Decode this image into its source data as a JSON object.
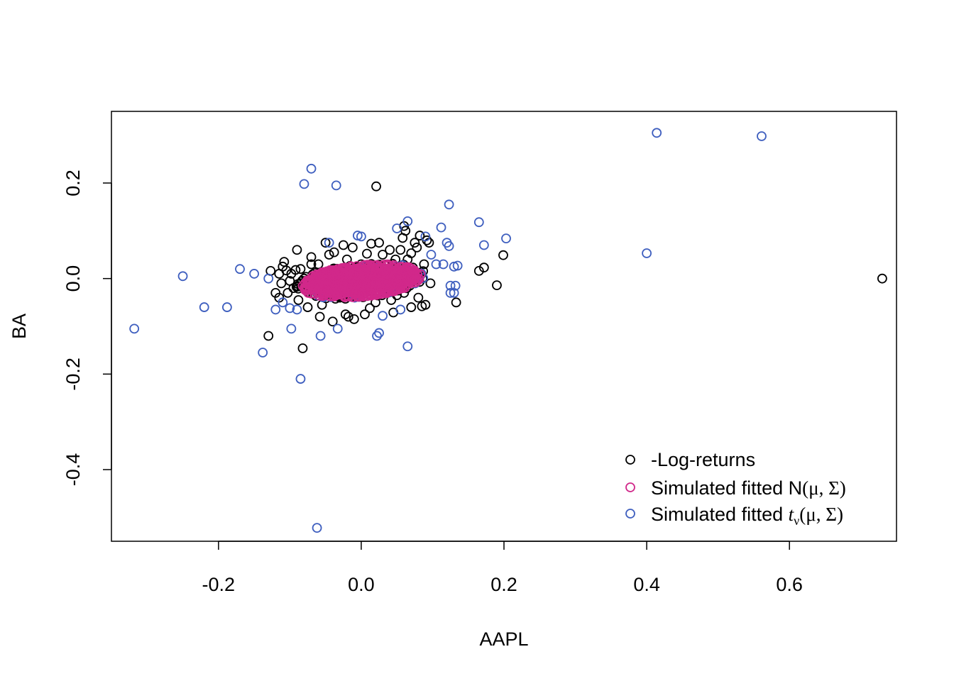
{
  "chart_data": {
    "type": "scatter",
    "title": "",
    "xlabel": "AAPL",
    "ylabel": "BA",
    "xlim": [
      -0.35,
      0.75
    ],
    "ylim": [
      -0.55,
      0.35
    ],
    "xticks": [
      -0.2,
      0.0,
      0.2,
      0.4,
      0.6
    ],
    "xtick_labels": [
      "-0.2",
      "0.0",
      "0.2",
      "0.4",
      "0.6"
    ],
    "yticks": [
      -0.4,
      -0.2,
      0.0,
      0.2
    ],
    "ytick_labels": [
      "-0.4",
      "-0.2",
      "0.0",
      "0.2"
    ],
    "grid": false,
    "legend_position": "bottom-right",
    "series": [
      {
        "name": "-Log-returns",
        "color": "#000000",
        "legend_label": "-Log-returns",
        "points": [
          [
            0.021,
            0.193
          ],
          [
            0.73,
            0.0
          ],
          [
            0.199,
            0.049
          ],
          [
            0.19,
            -0.014
          ],
          [
            0.172,
            0.023
          ],
          [
            0.165,
            0.016
          ],
          [
            0.133,
            -0.05
          ],
          [
            0.097,
            -0.01
          ],
          [
            0.09,
            -0.055
          ],
          [
            0.085,
            -0.058
          ],
          [
            0.082,
            0.09
          ],
          [
            0.06,
            0.11
          ],
          [
            0.062,
            0.1
          ],
          [
            0.045,
            -0.071
          ],
          [
            0.014,
            0.073
          ],
          [
            0.092,
            0.08
          ],
          [
            0.075,
            0.075
          ],
          [
            0.095,
            0.075
          ],
          [
            0.07,
            0.053
          ],
          [
            0.055,
            0.06
          ],
          [
            -0.13,
            -0.12
          ],
          [
            -0.082,
            -0.146
          ],
          [
            -0.09,
            0.06
          ],
          [
            -0.12,
            -0.03
          ],
          [
            -0.127,
            0.016
          ],
          [
            -0.108,
            0.035
          ],
          [
            -0.1,
            -0.005
          ],
          [
            -0.098,
            0.01
          ],
          [
            -0.11,
            0.025
          ],
          [
            -0.105,
            0.017
          ],
          [
            -0.115,
            0.01
          ],
          [
            -0.112,
            -0.01
          ],
          [
            -0.103,
            -0.03
          ],
          [
            -0.095,
            -0.02
          ],
          [
            -0.092,
            0.018
          ],
          [
            -0.088,
            -0.045
          ],
          [
            -0.07,
            0.03
          ],
          [
            -0.075,
            -0.06
          ],
          [
            -0.08,
            0.0
          ],
          [
            -0.058,
            -0.08
          ],
          [
            -0.05,
            0.075
          ],
          [
            -0.045,
            0.05
          ],
          [
            -0.04,
            -0.09
          ],
          [
            -0.022,
            -0.075
          ],
          [
            -0.01,
            -0.085
          ],
          [
            -0.025,
            0.07
          ],
          [
            -0.018,
            -0.08
          ],
          [
            0.005,
            -0.075
          ],
          [
            0.03,
            0.05
          ],
          [
            0.042,
            -0.045
          ],
          [
            0.05,
            -0.035
          ],
          [
            0.06,
            -0.03
          ],
          [
            0.065,
            0.04
          ],
          [
            0.07,
            -0.06
          ],
          [
            0.078,
            0.065
          ],
          [
            0.08,
            -0.04
          ],
          [
            -0.06,
            0.03
          ],
          [
            -0.062,
            -0.03
          ],
          [
            -0.02,
            0.04
          ],
          [
            0.02,
            -0.05
          ],
          [
            0.0,
            0.03
          ],
          [
            -0.03,
            -0.04
          ],
          [
            0.035,
            0.02
          ],
          [
            -0.085,
            0.02
          ],
          [
            0.025,
            0.075
          ],
          [
            -0.115,
            -0.04
          ],
          [
            0.088,
            0.03
          ],
          [
            0.058,
            0.085
          ],
          [
            -0.07,
            0.045
          ],
          [
            -0.055,
            -0.055
          ],
          [
            -0.012,
            0.065
          ],
          [
            0.012,
            -0.062
          ],
          [
            0.04,
            0.06
          ],
          [
            0.048,
            0.04
          ],
          [
            -0.038,
            0.055
          ],
          [
            0.068,
            -0.015
          ],
          [
            0.075,
            0.015
          ],
          [
            -0.078,
            -0.02
          ],
          [
            -0.065,
            0.012
          ],
          [
            0.008,
            0.052
          ]
        ]
      },
      {
        "name": "Simulated fitted N(μ, Σ)",
        "color": "#d1288a",
        "legend_label_prefix": "Simulated fitted N",
        "legend_label_math": "(μ, Σ)",
        "cloud": {
          "center": [
            0.0,
            -0.005
          ],
          "semi_axes": [
            0.09,
            0.035
          ],
          "angle_deg": 21,
          "count": 700
        }
      },
      {
        "name": "Simulated fitted t_ν(μ, Σ)",
        "color": "#3f5fbf",
        "legend_label_prefix": "Simulated fitted ",
        "legend_label_math_t": "t",
        "legend_label_math_sub": "ν",
        "legend_label_math": "(μ, Σ)",
        "points": [
          [
            0.414,
            0.305
          ],
          [
            0.561,
            0.298
          ],
          [
            0.4,
            0.053
          ],
          [
            -0.07,
            0.23
          ],
          [
            -0.08,
            0.198
          ],
          [
            -0.035,
            0.195
          ],
          [
            -0.062,
            -0.522
          ],
          [
            -0.318,
            -0.105
          ],
          [
            -0.25,
            0.005
          ],
          [
            -0.22,
            -0.06
          ],
          [
            -0.188,
            -0.06
          ],
          [
            -0.17,
            0.02
          ],
          [
            -0.15,
            0.01
          ],
          [
            -0.138,
            -0.155
          ],
          [
            -0.098,
            -0.105
          ],
          [
            -0.085,
            -0.21
          ],
          [
            -0.057,
            -0.12
          ],
          [
            -0.033,
            -0.105
          ],
          [
            0.022,
            -0.12
          ],
          [
            0.025,
            -0.114
          ],
          [
            0.065,
            -0.142
          ],
          [
            0.123,
            0.155
          ],
          [
            0.165,
            0.118
          ],
          [
            0.203,
            0.084
          ],
          [
            0.172,
            0.07
          ],
          [
            0.112,
            0.107
          ],
          [
            0.12,
            0.075
          ],
          [
            0.123,
            0.068
          ],
          [
            0.115,
            0.03
          ],
          [
            0.13,
            0.025
          ],
          [
            0.135,
            0.027
          ],
          [
            0.125,
            -0.015
          ],
          [
            0.132,
            -0.015
          ],
          [
            0.125,
            -0.03
          ],
          [
            0.13,
            -0.03
          ],
          [
            0.105,
            0.03
          ],
          [
            0.098,
            0.05
          ],
          [
            0.09,
            0.088
          ],
          [
            0.065,
            0.12
          ],
          [
            0.05,
            0.105
          ],
          [
            -0.005,
            0.09
          ],
          [
            0.0,
            0.088
          ],
          [
            -0.045,
            0.075
          ],
          [
            -0.12,
            -0.065
          ],
          [
            -0.13,
            0.0
          ],
          [
            -0.11,
            -0.05
          ],
          [
            -0.1,
            -0.062
          ],
          [
            -0.09,
            -0.065
          ],
          [
            0.055,
            -0.065
          ],
          [
            0.03,
            -0.078
          ]
        ]
      }
    ]
  }
}
